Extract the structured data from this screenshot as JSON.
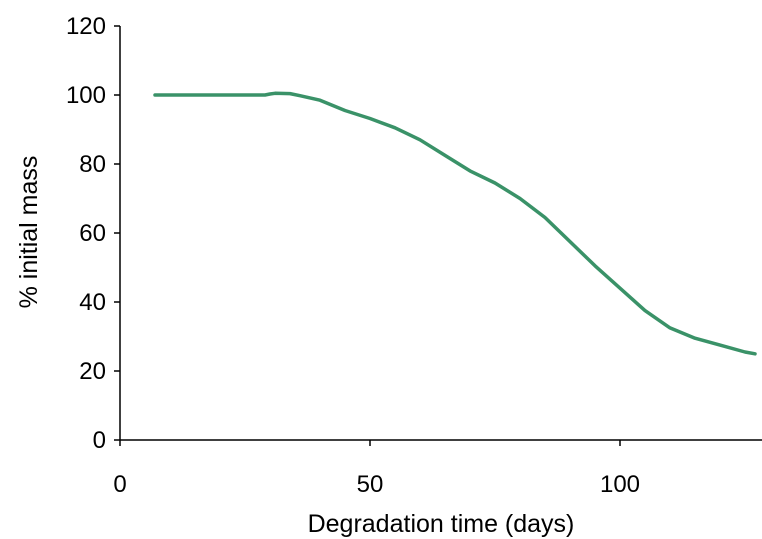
{
  "chart_data": {
    "type": "line",
    "title": "",
    "xlabel": "Degradation time (days)",
    "ylabel": "% initial mass",
    "xlim": [
      0,
      128
    ],
    "ylim": [
      0,
      120
    ],
    "xticks": [
      0,
      50,
      100
    ],
    "yticks": [
      0,
      20,
      40,
      60,
      80,
      100,
      120
    ],
    "grid": false,
    "legend": "none",
    "series": [
      {
        "color": "#3a9268",
        "x": [
          7,
          15,
          22,
          29,
          30,
          31,
          34,
          36,
          40,
          45,
          50,
          55,
          60,
          65,
          70,
          75,
          80,
          85,
          90,
          95,
          100,
          105,
          110,
          115,
          120,
          125,
          127
        ],
        "y": [
          100,
          100,
          100,
          100,
          100.3,
          100.5,
          100.4,
          99.8,
          98.5,
          95.5,
          93.2,
          90.5,
          87,
          82.5,
          78,
          74.5,
          70,
          64.5,
          57.5,
          50.5,
          44,
          37.5,
          32.5,
          29.5,
          27.5,
          25.5,
          25
        ]
      }
    ]
  }
}
